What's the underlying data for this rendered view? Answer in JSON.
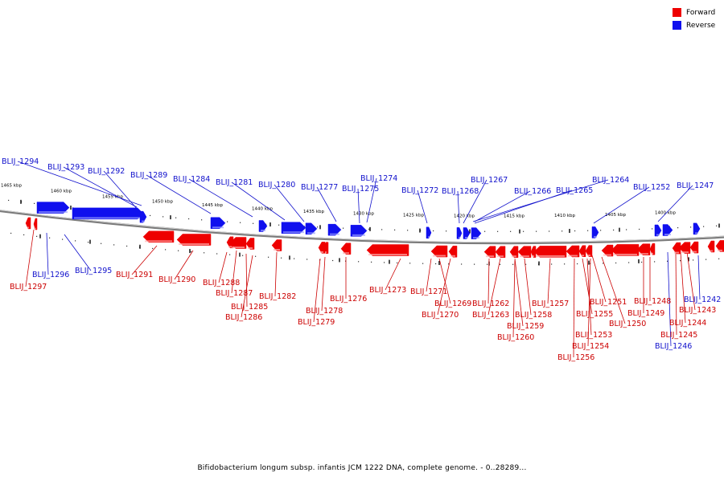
{
  "legend": {
    "forward": {
      "label": "Forward",
      "color": "#ee0000"
    },
    "reverse": {
      "label": "Reverse",
      "color": "#1010ee"
    }
  },
  "caption": "Bifidobacterium longum subsp. infantis JCM 1222 DNA, complete genome. - 0..28289...",
  "scale_labels": [
    "1465 kbp",
    "1460 kbp",
    "1455 kbp",
    "1450 kbp",
    "1445 kbp",
    "1440 kbp",
    "1435 kbp",
    "1430 kbp",
    "1425 kbp",
    "1420 kbp",
    "1415 kbp",
    "1410 kbp",
    "1405 kbp",
    "1400 kbp"
  ],
  "reverse_genes": [
    "BLIJ_1294",
    "BLIJ_1293",
    "BLIJ_1292",
    "BLIJ_1289",
    "BLIJ_1284",
    "BLIJ_1281",
    "BLIJ_1280",
    "BLIJ_1277",
    "BLIJ_1275",
    "BLIJ_1274",
    "BLIJ_1272",
    "BLIJ_1268",
    "BLIJ_1267",
    "BLIJ_1266",
    "BLIJ_1265",
    "BLIJ_1264",
    "BLIJ_1252",
    "BLIJ_1247",
    "BLIJ_1296",
    "BLIJ_1295",
    "BLIJ_1246",
    "BLIJ_1242"
  ],
  "forward_genes": [
    "BLIJ_1297",
    "BLIJ_1291",
    "BLIJ_1290",
    "BLIJ_1288",
    "BLIJ_1287",
    "BLIJ_1285",
    "BLIJ_1286",
    "BLIJ_1282",
    "BLIJ_1278",
    "BLIJ_1279",
    "BLIJ_1276",
    "BLIJ_1273",
    "BLIJ_1271",
    "BLIJ_1269",
    "BLIJ_1270",
    "BLIJ_1262",
    "BLIJ_1263",
    "BLIJ_1259",
    "BLIJ_1260",
    "BLIJ_1258",
    "BLIJ_1257",
    "BLIJ_1255",
    "BLIJ_1253",
    "BLIJ_1254",
    "BLIJ_1256",
    "BLIJ_1251",
    "BLIJ_1250",
    "BLIJ_1249",
    "BLIJ_1248",
    "BLIJ_1245",
    "BLIJ_1244",
    "BLIJ_1243"
  ]
}
